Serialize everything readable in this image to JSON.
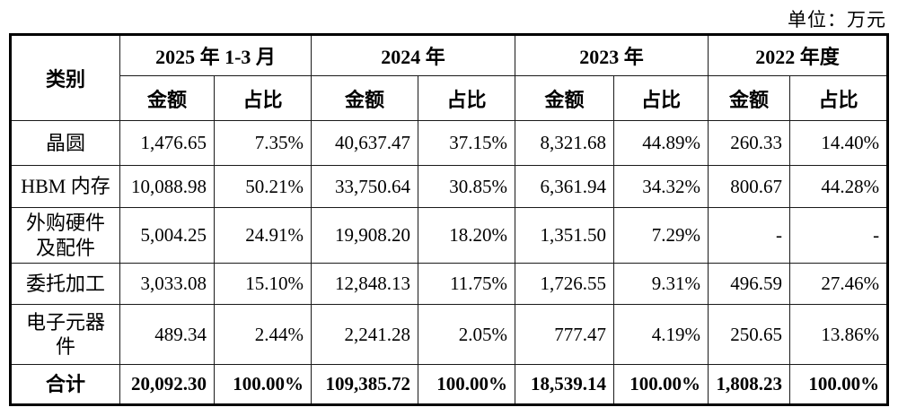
{
  "unit_label": "单位：万元",
  "table": {
    "corner_header": "类别",
    "periods": [
      "2025 年 1-3 月",
      "2024 年",
      "2023 年",
      "2022 年度"
    ],
    "sub_headers": [
      "金额",
      "占比"
    ],
    "rows": [
      {
        "category": "晶圆",
        "values": [
          "1,476.65",
          "7.35%",
          "40,637.47",
          "37.15%",
          "8,321.68",
          "44.89%",
          "260.33",
          "14.40%"
        ],
        "bold": false
      },
      {
        "category": "HBM 内存",
        "values": [
          "10,088.98",
          "50.21%",
          "33,750.64",
          "30.85%",
          "6,361.94",
          "34.32%",
          "800.67",
          "44.28%"
        ],
        "bold": false
      },
      {
        "category": "外购硬件\n及配件",
        "values": [
          "5,004.25",
          "24.91%",
          "19,908.20",
          "18.20%",
          "1,351.50",
          "7.29%",
          "-",
          "-"
        ],
        "bold": false
      },
      {
        "category": "委托加工",
        "values": [
          "3,033.08",
          "15.10%",
          "12,848.13",
          "11.75%",
          "1,726.55",
          "9.31%",
          "496.59",
          "27.46%"
        ],
        "bold": false
      },
      {
        "category": "电子元器\n件",
        "values": [
          "489.34",
          "2.44%",
          "2,241.28",
          "2.05%",
          "777.47",
          "4.19%",
          "250.65",
          "13.86%"
        ],
        "bold": false
      },
      {
        "category": "合计",
        "values": [
          "20,092.30",
          "100.00%",
          "109,385.72",
          "100.00%",
          "18,539.14",
          "100.00%",
          "1,808.23",
          "100.00%"
        ],
        "bold": true
      }
    ]
  }
}
